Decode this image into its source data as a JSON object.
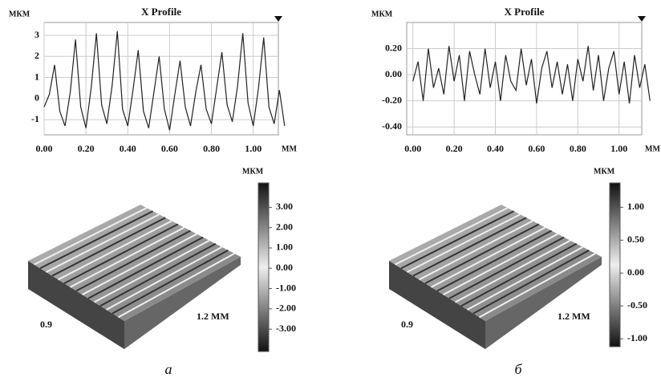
{
  "chart_data": [
    {
      "type": "line",
      "title": "X Profile",
      "ylabel": "МКМ",
      "xlabel": "ММ",
      "color": "#222222",
      "x": [
        0,
        0.025,
        0.05,
        0.075,
        0.1,
        0.125,
        0.15,
        0.175,
        0.2,
        0.225,
        0.25,
        0.275,
        0.3,
        0.325,
        0.35,
        0.375,
        0.4,
        0.425,
        0.45,
        0.475,
        0.5,
        0.525,
        0.55,
        0.575,
        0.6,
        0.625,
        0.65,
        0.675,
        0.7,
        0.725,
        0.75,
        0.775,
        0.8,
        0.825,
        0.85,
        0.875,
        0.9,
        0.925,
        0.95,
        0.975,
        1.0,
        1.025,
        1.05,
        1.075,
        1.1,
        1.125,
        1.15
      ],
      "values": [
        -0.4,
        0.2,
        1.6,
        -0.6,
        -1.3,
        0.3,
        2.8,
        -0.4,
        -1.4,
        0.5,
        3.1,
        -0.3,
        -1.2,
        0.6,
        3.2,
        -0.5,
        -1.3,
        0.4,
        2.3,
        -0.6,
        -1.4,
        0.3,
        2.0,
        -0.5,
        -1.5,
        0.2,
        1.8,
        -0.4,
        -1.3,
        0.3,
        1.6,
        -0.5,
        -1.2,
        0.5,
        2.2,
        -0.3,
        -1.1,
        0.6,
        3.1,
        -0.2,
        -1.3,
        0.5,
        2.9,
        -0.4,
        -1.2,
        0.4,
        -1.3
      ],
      "xlim": [
        0,
        1.12
      ],
      "ylim": [
        -1.72,
        3.61
      ],
      "xticks": [
        {
          "value": 0,
          "label": "0.00"
        },
        {
          "value": 0.2,
          "label": "0.20"
        },
        {
          "value": 0.4,
          "label": "0.40"
        },
        {
          "value": 0.6,
          "label": "0.60"
        },
        {
          "value": 0.8,
          "label": "0.80"
        },
        {
          "value": 1.0,
          "label": "1.00"
        }
      ],
      "yticks": [
        -1,
        0,
        1,
        2,
        3
      ],
      "grid": true
    },
    {
      "type": "line",
      "title": "X Profile",
      "ylabel": "МКМ",
      "xlabel": "ММ",
      "color": "#222222",
      "x": [
        0,
        0.025,
        0.05,
        0.075,
        0.1,
        0.125,
        0.15,
        0.175,
        0.2,
        0.225,
        0.25,
        0.275,
        0.3,
        0.325,
        0.35,
        0.375,
        0.4,
        0.425,
        0.45,
        0.475,
        0.5,
        0.525,
        0.55,
        0.575,
        0.6,
        0.625,
        0.65,
        0.675,
        0.7,
        0.725,
        0.75,
        0.775,
        0.8,
        0.825,
        0.85,
        0.875,
        0.9,
        0.925,
        0.95,
        0.975,
        1.0,
        1.025,
        1.05,
        1.075,
        1.1,
        1.125,
        1.15
      ],
      "values": [
        -0.05,
        0.1,
        -0.2,
        0.2,
        -0.1,
        0.05,
        -0.15,
        0.22,
        -0.05,
        0.15,
        -0.2,
        0.18,
        0.0,
        -0.15,
        0.2,
        -0.1,
        0.1,
        -0.2,
        0.15,
        -0.05,
        -0.12,
        0.2,
        -0.08,
        0.12,
        -0.22,
        0.05,
        0.18,
        -0.1,
        0.1,
        -0.15,
        0.08,
        -0.2,
        0.12,
        -0.05,
        0.22,
        -0.12,
        0.15,
        -0.2,
        0.05,
        0.18,
        -0.15,
        0.1,
        -0.22,
        0.15,
        -0.1,
        0.08,
        -0.2
      ],
      "xlim": [
        -0.03,
        1.11
      ],
      "ylim": [
        -0.46,
        0.4
      ],
      "xticks": [
        {
          "value": 0,
          "label": "0.00"
        },
        {
          "value": 0.2,
          "label": "0.20"
        },
        {
          "value": 0.4,
          "label": "0.40"
        },
        {
          "value": 0.6,
          "label": "0.60"
        },
        {
          "value": 0.8,
          "label": "0.80"
        },
        {
          "value": 1.0,
          "label": "1.00"
        }
      ],
      "yticks": [
        {
          "value": -0.4,
          "label": "-0.40"
        },
        {
          "value": -0.2,
          "label": "-0.20"
        },
        {
          "value": 0,
          "label": "0.00"
        },
        {
          "value": 0.2,
          "label": "0.20"
        }
      ],
      "grid": true
    },
    {
      "type": "surface",
      "colorbar_label": "МКМ",
      "width_label": "1.2 ММ",
      "depth_label": "0.9",
      "ylim": [
        -4.1,
        4.2
      ],
      "yticks": [
        {
          "value": 3,
          "label": "3.00"
        },
        {
          "value": 2,
          "label": "2.00"
        },
        {
          "value": 1,
          "label": "1.00"
        },
        {
          "value": 0,
          "label": "0.00"
        },
        {
          "value": -1,
          "label": "-1.00"
        },
        {
          "value": -2,
          "label": "-2.00"
        },
        {
          "value": -3,
          "label": "-3.00"
        }
      ]
    },
    {
      "type": "surface",
      "colorbar_label": "МКМ",
      "width_label": "1.2 ММ",
      "depth_label": "0.9",
      "ylim": [
        -1.12,
        1.37
      ],
      "yticks": [
        {
          "value": 1,
          "label": "1.00"
        },
        {
          "value": 0.5,
          "label": "0.50"
        },
        {
          "value": 0,
          "label": "0.00"
        },
        {
          "value": -0.5,
          "label": "-0.50"
        },
        {
          "value": -1,
          "label": "-1.00"
        }
      ]
    }
  ],
  "captions": [
    "а",
    "б"
  ]
}
